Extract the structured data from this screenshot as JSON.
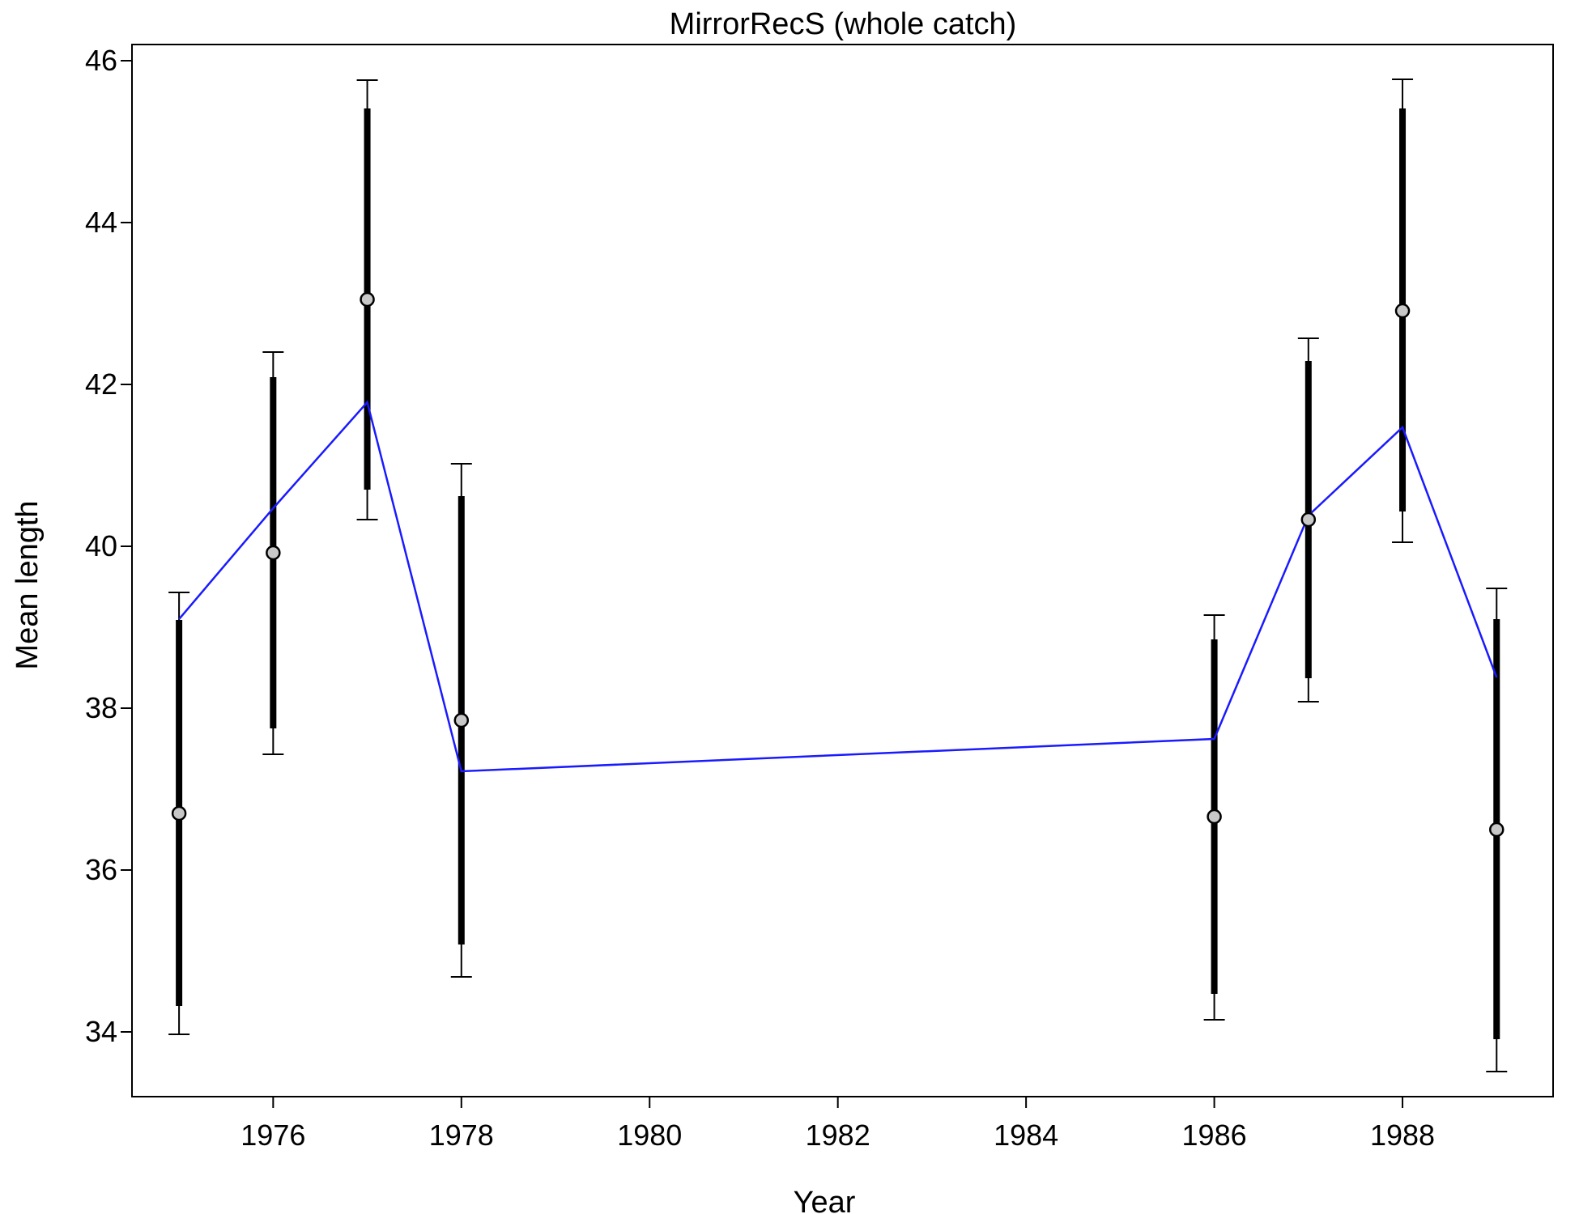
{
  "chart_data": {
    "type": "scatter",
    "title": "MirrorRecS (whole catch)",
    "xlabel": "Year",
    "ylabel": "Mean length",
    "xlim": [
      1974.5,
      1989.6
    ],
    "ylim": [
      33.2,
      46.2
    ],
    "x_ticks": [
      1976,
      1978,
      1980,
      1982,
      1984,
      1986,
      1988
    ],
    "y_ticks": [
      34,
      36,
      38,
      40,
      42,
      44,
      46
    ],
    "grid": false,
    "observed": {
      "years": [
        1975,
        1976,
        1977,
        1978,
        1986,
        1987,
        1988,
        1989
      ],
      "mean": [
        36.7,
        39.92,
        43.05,
        37.85,
        36.66,
        40.33,
        42.91,
        36.5
      ],
      "inner_lower": [
        34.32,
        37.75,
        40.7,
        35.08,
        34.47,
        38.37,
        40.43,
        33.91
      ],
      "inner_upper": [
        39.09,
        42.09,
        45.41,
        40.62,
        38.85,
        42.29,
        45.41,
        39.1
      ],
      "outer_lower": [
        33.97,
        37.43,
        40.33,
        34.68,
        34.15,
        38.08,
        40.05,
        33.51
      ],
      "outer_upper": [
        39.43,
        42.4,
        45.76,
        41.02,
        39.15,
        42.57,
        45.77,
        39.48
      ]
    },
    "expected": {
      "years": [
        1975,
        1976,
        1977,
        1978,
        1986,
        1987,
        1988,
        1989
      ],
      "values": [
        39.1,
        40.47,
        41.78,
        37.22,
        37.62,
        40.38,
        41.47,
        38.38
      ]
    },
    "colors": {
      "expected_line": "#1a1aff",
      "point_fill": "#c8c8c8",
      "error_bar": "#000000"
    }
  }
}
